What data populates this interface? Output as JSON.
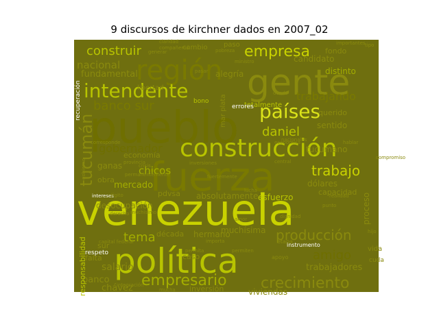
{
  "figure": {
    "title": "9 discursos de kirchner dados en 2007_02"
  },
  "palette": {
    "background": "#6f6f0f",
    "colors": [
      "#b8c400",
      "#8a8a0e",
      "#c9d200",
      "#7a7a00",
      "#dbe31a",
      "#a3ad00",
      "#e0e56a",
      "#ffffff"
    ]
  },
  "wordcloud": {
    "words": [
      {
        "text": "venezuela",
        "color": "#c9d200"
      },
      {
        "text": "pueblo",
        "color": "#6f6f00"
      },
      {
        "text": "política",
        "color": "#b8c400"
      },
      {
        "text": "fuerza",
        "color": "#7a7a00"
      },
      {
        "text": "gente",
        "color": "#8a8a0e"
      },
      {
        "text": "construcción",
        "color": "#b8c400"
      },
      {
        "text": "región",
        "color": "#7a7a00"
      },
      {
        "text": "intendente",
        "color": "#b8c400"
      },
      {
        "text": "países",
        "color": "#dbe31a"
      },
      {
        "text": "crecimiento",
        "color": "#8a8a0e"
      },
      {
        "text": "producción",
        "color": "#8a8a0e"
      },
      {
        "text": "empresario",
        "color": "#a3ad00"
      },
      {
        "text": "tucumán",
        "color": "#8a8a0e"
      },
      {
        "text": "empresa",
        "color": "#c9d200"
      },
      {
        "text": "construir",
        "color": "#b8c400"
      },
      {
        "text": "trabajo",
        "color": "#c9d200"
      },
      {
        "text": "banco sur",
        "color": "#7a7a00"
      },
      {
        "text": "daniel",
        "color": "#b8c400"
      },
      {
        "text": "amigo",
        "color": "#6f6f00"
      },
      {
        "text": "gobernador",
        "color": "#6f6f00"
      },
      {
        "text": "trabajando",
        "color": "#7a7a00"
      },
      {
        "text": "nacional",
        "color": "#8a8a0e"
      },
      {
        "text": "tema",
        "color": "#a3ad00"
      },
      {
        "text": "fundamental",
        "color": "#8a8a0e"
      },
      {
        "text": "mercado",
        "color": "#a3ad00"
      },
      {
        "text": "trabajadores",
        "color": "#8a8a0e"
      },
      {
        "text": "absolutamente",
        "color": "#8a8a0e"
      },
      {
        "text": "chicos",
        "color": "#a3ad00"
      },
      {
        "text": "ganas",
        "color": "#8a8a0e"
      },
      {
        "text": "dólares",
        "color": "#8a8a0e"
      },
      {
        "text": "desocupación",
        "color": "#8a8a0e"
      },
      {
        "text": "salario",
        "color": "#8a8a0e"
      },
      {
        "text": "banco",
        "color": "#8a8a0e"
      },
      {
        "text": "chávez",
        "color": "#8a8a0e"
      },
      {
        "text": "viviendas",
        "color": "#8a8a0e"
      },
      {
        "text": "inversión",
        "color": "#8a8a0e"
      },
      {
        "text": "hermano",
        "color": "#8a8a0e"
      },
      {
        "text": "muchísima",
        "color": "#8a8a0e"
      },
      {
        "text": "capacidad",
        "color": "#8a8a0e"
      },
      {
        "text": "proceso",
        "color": "#8a8a0e"
      },
      {
        "text": "sentido",
        "color": "#8a8a0e"
      },
      {
        "text": "querido",
        "color": "#8a8a0e"
      },
      {
        "text": "tucumano",
        "color": "#8a8a0e"
      },
      {
        "text": "candidato",
        "color": "#8a8a0e"
      },
      {
        "text": "distinto",
        "color": "#a3ad00"
      },
      {
        "text": "fondo",
        "color": "#8a8a0e"
      },
      {
        "text": "alegría",
        "color": "#8a8a0e"
      },
      {
        "text": "esfuerzo",
        "color": "#b8c400"
      },
      {
        "text": "pdvsa",
        "color": "#8a8a0e"
      },
      {
        "text": "economía",
        "color": "#8a8a0e"
      },
      {
        "text": "obra",
        "color": "#8a8a0e"
      },
      {
        "text": "década",
        "color": "#8a8a0e"
      },
      {
        "text": "sur",
        "color": "#8a8a0e"
      },
      {
        "text": "falta",
        "color": "#8a8a0e"
      },
      {
        "text": "respeto",
        "color": "#ffffff"
      },
      {
        "text": "caso",
        "color": "#8a8a0e"
      },
      {
        "text": "cambio",
        "color": "#8a8a0e"
      },
      {
        "text": "paso",
        "color": "#8a8a0e"
      },
      {
        "text": "libertad",
        "color": "#8a8a0e"
      },
      {
        "text": "totalmente",
        "color": "#b8c400"
      },
      {
        "text": "mar plata",
        "color": "#8a8a0e"
      },
      {
        "text": "vida",
        "color": "#8a8a0e"
      },
      {
        "text": "cuda",
        "color": "#8a8a0e"
      },
      {
        "text": "responsabilidad",
        "color": "#b8c400"
      },
      {
        "text": "recuperación",
        "color": "#ffffff"
      },
      {
        "text": "bono",
        "color": "#b8c400"
      },
      {
        "text": "errores",
        "color": "#ffffff"
      },
      {
        "text": "etapa",
        "color": "#8a8a0e"
      },
      {
        "text": "apoyo",
        "color": "#8a8a0e"
      },
      {
        "text": "instrumento",
        "color": "#ffffff"
      },
      {
        "text": "importantes",
        "color": "#8a8a0e"
      },
      {
        "text": "tipo",
        "color": "#8a8a0e"
      },
      {
        "text": "claridad",
        "color": "#8a8a0e"
      },
      {
        "text": "ministro",
        "color": "#8a8a0e"
      },
      {
        "text": "pobreza",
        "color": "#8a8a0e"
      },
      {
        "text": "generar",
        "color": "#8a8a0e"
      },
      {
        "text": "compañeros",
        "color": "#8a8a0e"
      },
      {
        "text": "pasar",
        "color": "#8a8a0e"
      },
      {
        "text": "dando",
        "color": "#8a8a0e"
      },
      {
        "text": "económica",
        "color": "#8a8a0e"
      },
      {
        "text": "nacionales",
        "color": "#8a8a0e"
      },
      {
        "text": "hablar",
        "color": "#8a8a0e"
      },
      {
        "text": "central",
        "color": "#8a8a0e"
      },
      {
        "text": "provincia",
        "color": "#8a8a0e"
      },
      {
        "text": "inversiones",
        "color": "#8a8a0e"
      },
      {
        "text": "intereses",
        "color": "#ffffff"
      },
      {
        "text": "realidad",
        "color": "#8a8a0e"
      },
      {
        "text": "dignidad",
        "color": "#8a8a0e"
      },
      {
        "text": "punto",
        "color": "#8a8a0e"
      },
      {
        "text": "amor",
        "color": "#8a8a0e"
      },
      {
        "text": "importa",
        "color": "#8a8a0e"
      },
      {
        "text": "permita",
        "color": "#8a8a0e"
      },
      {
        "text": "capital federal",
        "color": "#8a8a0e"
      },
      {
        "text": "integración",
        "color": "#8a8a0e"
      },
      {
        "text": "mucha",
        "color": "#8a8a0e"
      },
      {
        "text": "gobierno",
        "color": "#8a8a0e"
      },
      {
        "text": "permanentemente",
        "color": "#8a8a0e"
      },
      {
        "text": "corresponde",
        "color": "#8a8a0e"
      },
      {
        "text": "fuertemente",
        "color": "#8a8a0e"
      },
      {
        "text": "muchísimo",
        "color": "#8a8a0e"
      },
      {
        "text": "derecho",
        "color": "#8a8a0e"
      },
      {
        "text": "crisis",
        "color": "#8a8a0e"
      },
      {
        "text": "digito",
        "color": "#8a8a0e"
      },
      {
        "text": "permiten",
        "color": "#8a8a0e"
      },
      {
        "text": "hijo",
        "color": "#8a8a0e"
      },
      {
        "text": "lucha",
        "color": "#8a8a0e"
      },
      {
        "text": "compromiso",
        "color": "#8a8a0e"
      },
      {
        "text": "patria",
        "color": "#8a8a0e"
      }
    ]
  }
}
